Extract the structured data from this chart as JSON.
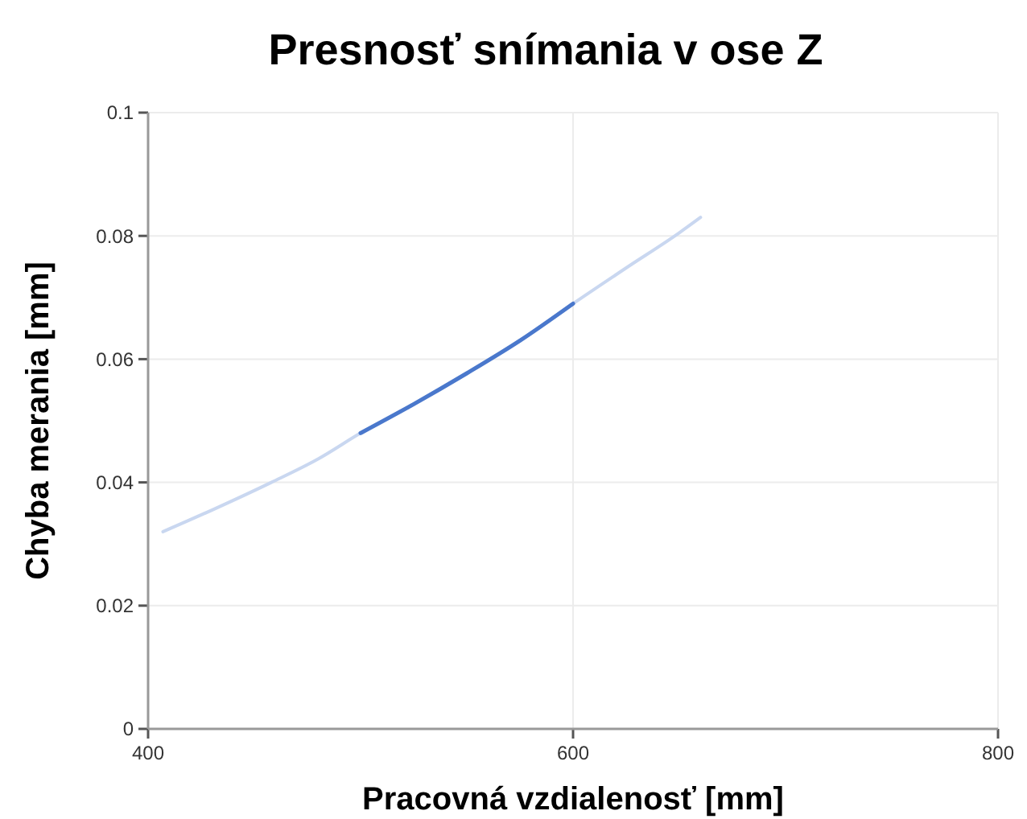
{
  "chart_data": {
    "type": "line",
    "title": "Presnosť snímania v ose Z",
    "xlabel": "Pracovná vzdialenosť [mm]",
    "ylabel": "Chyba merania [mm]",
    "xlim": [
      400,
      800
    ],
    "xticks": [
      400,
      600,
      800
    ],
    "ylim": [
      0,
      0.1
    ],
    "yticks": [
      0,
      0.02,
      0.04,
      0.06,
      0.08,
      0.1
    ],
    "grid": true,
    "series": [
      {
        "color": "#c9d7f0",
        "x": [
          407,
          430,
          458,
          480,
          500,
          525,
          550,
          575,
          600,
          625,
          650,
          660
        ],
        "values": [
          0.032,
          0.0355,
          0.04,
          0.0438,
          0.048,
          0.0527,
          0.0577,
          0.063,
          0.069,
          0.0748,
          0.0805,
          0.083
        ]
      },
      {
        "color": "#4a78cc",
        "x": [
          500,
          525,
          550,
          575,
          600
        ],
        "values": [
          0.048,
          0.0527,
          0.0577,
          0.063,
          0.069
        ]
      }
    ]
  }
}
